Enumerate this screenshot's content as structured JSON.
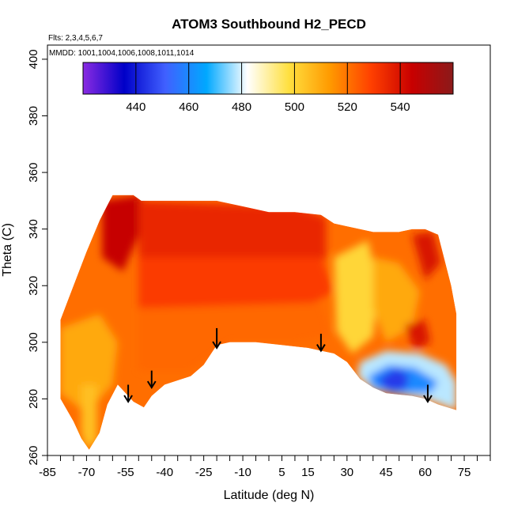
{
  "chart_data": {
    "type": "heatmap",
    "title": "ATOM3 Southbound H2_PECD",
    "flights_note": "Flts: 2,3,4,5,6,7",
    "dates_note": "MMDD: 1001,1004,1006,1008,1011,1014",
    "xlabel": "Latitude (deg N)",
    "ylabel": "Theta (C)",
    "xlim": [
      -85,
      85
    ],
    "ylim": [
      260,
      405
    ],
    "x_ticks": [
      -85,
      -70,
      -55,
      -40,
      -25,
      -10,
      5,
      15,
      30,
      45,
      60,
      75
    ],
    "x_tick_labels": [
      "-85",
      "-70",
      "-55",
      "-40",
      "-25",
      "-10",
      "5",
      "15",
      "30",
      "45",
      "60",
      "75"
    ],
    "x_minor_step": 5,
    "y_ticks": [
      260,
      280,
      300,
      320,
      340,
      360,
      380,
      400
    ],
    "y_tick_labels": [
      "260",
      "280",
      "300",
      "320",
      "340",
      "360",
      "380",
      "400"
    ],
    "colorbar": {
      "range": [
        420,
        560
      ],
      "ticks": [
        440,
        460,
        480,
        500,
        520,
        540
      ],
      "tick_labels": [
        "440",
        "460",
        "480",
        "500",
        "520",
        "540"
      ],
      "colors": [
        "#8a2be2",
        "#0000c8",
        "#4060ff",
        "#00a8ff",
        "#ffffff",
        "#ffe040",
        "#ff9a00",
        "#ff4000",
        "#c80000",
        "#8b1a1a"
      ]
    },
    "coverage": {
      "top": [
        [
          -80,
          308
        ],
        [
          -75,
          320
        ],
        [
          -70,
          332
        ],
        [
          -65,
          343
        ],
        [
          -60,
          352
        ],
        [
          -52,
          352
        ],
        [
          -49,
          350
        ],
        [
          -40,
          350
        ],
        [
          -20,
          350
        ],
        [
          -10,
          348
        ],
        [
          0,
          346
        ],
        [
          10,
          346
        ],
        [
          20,
          345
        ],
        [
          25,
          342
        ],
        [
          30,
          341
        ],
        [
          40,
          339
        ],
        [
          50,
          339
        ],
        [
          55,
          340
        ],
        [
          60,
          340
        ],
        [
          65,
          338
        ],
        [
          70,
          320
        ],
        [
          72,
          310
        ]
      ],
      "bottom": [
        [
          -80,
          280
        ],
        [
          -75,
          272
        ],
        [
          -72,
          266
        ],
        [
          -69,
          262
        ],
        [
          -65,
          268
        ],
        [
          -62,
          278
        ],
        [
          -58,
          285
        ],
        [
          -55,
          282
        ],
        [
          -52,
          279
        ],
        [
          -48,
          277
        ],
        [
          -45,
          281
        ],
        [
          -40,
          285
        ],
        [
          -30,
          288
        ],
        [
          -25,
          292
        ],
        [
          -20,
          299
        ],
        [
          -15,
          300
        ],
        [
          -5,
          300
        ],
        [
          5,
          299
        ],
        [
          15,
          298
        ],
        [
          20,
          297
        ],
        [
          25,
          296
        ],
        [
          30,
          293
        ],
        [
          35,
          287
        ],
        [
          40,
          284
        ],
        [
          45,
          282
        ],
        [
          55,
          281
        ],
        [
          60,
          280
        ],
        [
          65,
          278
        ],
        [
          72,
          276
        ]
      ]
    },
    "regions": [
      {
        "value": 545,
        "points": [
          [
            -64,
            350
          ],
          [
            -49,
            352
          ],
          [
            -49,
            340
          ],
          [
            -56,
            325
          ],
          [
            -64,
            330
          ]
        ]
      },
      {
        "value": 535,
        "points": [
          [
            -50,
            350
          ],
          [
            10,
            348
          ],
          [
            22,
            344
          ],
          [
            22,
            330
          ],
          [
            10,
            322
          ],
          [
            -20,
            322
          ],
          [
            -50,
            326
          ]
        ]
      },
      {
        "value": 530,
        "points": [
          [
            -50,
            330
          ],
          [
            20,
            330
          ],
          [
            25,
            318
          ],
          [
            10,
            310
          ],
          [
            -20,
            308
          ],
          [
            -50,
            310
          ]
        ]
      },
      {
        "value": 522,
        "points": [
          [
            -50,
            312
          ],
          [
            20,
            314
          ],
          [
            24,
            302
          ],
          [
            10,
            300
          ],
          [
            -15,
            300
          ],
          [
            -30,
            290
          ],
          [
            -50,
            290
          ]
        ]
      },
      {
        "value": 510,
        "points": [
          [
            -80,
            305
          ],
          [
            -65,
            310
          ],
          [
            -58,
            300
          ],
          [
            -60,
            285
          ],
          [
            -70,
            275
          ],
          [
            -80,
            282
          ]
        ]
      },
      {
        "value": 505,
        "points": [
          [
            -72,
            285
          ],
          [
            -66,
            285
          ],
          [
            -66,
            265
          ],
          [
            -70,
            262
          ],
          [
            -72,
            268
          ]
        ]
      },
      {
        "value": 500,
        "points": [
          [
            25,
            330
          ],
          [
            38,
            336
          ],
          [
            42,
            320
          ],
          [
            40,
            302
          ],
          [
            32,
            296
          ],
          [
            26,
            304
          ]
        ]
      },
      {
        "value": 510,
        "points": [
          [
            40,
            330
          ],
          [
            50,
            328
          ],
          [
            58,
            318
          ],
          [
            55,
            305
          ],
          [
            45,
            300
          ],
          [
            40,
            312
          ]
        ]
      },
      {
        "value": 540,
        "points": [
          [
            55,
            338
          ],
          [
            63,
            339
          ],
          [
            66,
            328
          ],
          [
            60,
            322
          ]
        ]
      },
      {
        "value": 540,
        "points": [
          [
            52,
            306
          ],
          [
            60,
            308
          ],
          [
            62,
            300
          ],
          [
            56,
            297
          ]
        ]
      },
      {
        "value": 478,
        "points": [
          [
            35,
            293
          ],
          [
            45,
            297
          ],
          [
            58,
            296
          ],
          [
            68,
            292
          ],
          [
            72,
            286
          ],
          [
            72,
            276
          ],
          [
            60,
            280
          ],
          [
            40,
            283
          ],
          [
            34,
            288
          ]
        ]
      },
      {
        "value": 460,
        "points": [
          [
            38,
            288
          ],
          [
            46,
            292
          ],
          [
            56,
            291
          ],
          [
            65,
            286
          ],
          [
            62,
            282
          ],
          [
            48,
            282
          ],
          [
            40,
            284
          ]
        ]
      },
      {
        "value": 445,
        "points": [
          [
            42,
            287
          ],
          [
            49,
            291
          ],
          [
            54,
            288
          ],
          [
            52,
            283
          ],
          [
            45,
            283
          ]
        ]
      }
    ],
    "arrows_lat": [
      -54,
      -45,
      -20,
      20,
      61
    ],
    "arrows_theta_top": [
      285,
      290,
      305,
      303,
      285
    ],
    "arrows_theta_bottom": [
      279,
      284,
      298,
      297,
      279
    ]
  }
}
